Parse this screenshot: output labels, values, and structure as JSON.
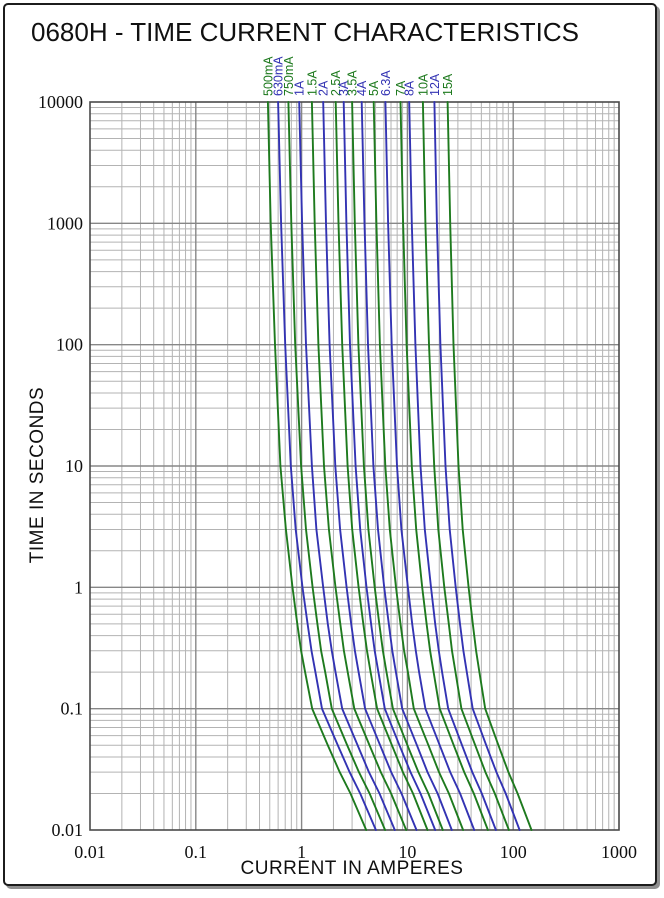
{
  "page": {
    "title": "0680H - TIME CURRENT CHARACTERISTICS"
  },
  "colors": {
    "green": "#1e7a1e",
    "blue": "#3333b3",
    "grid_minor": "#b3b3b3",
    "grid_major": "#878787",
    "frame": "#4a4a4a",
    "text": "#101010"
  },
  "chart_data": {
    "type": "line",
    "title": "0680H - TIME CURRENT CHARACTERISTICS",
    "xlabel": "CURRENT IN AMPERES",
    "ylabel": "TIME IN SECONDS",
    "x_scale": "log",
    "y_scale": "log",
    "xlim": [
      0.01,
      1000
    ],
    "ylim": [
      0.01,
      10000
    ],
    "x_ticks": [
      0.01,
      0.1,
      1,
      10,
      100,
      1000
    ],
    "y_ticks": [
      10000,
      1000,
      100,
      10,
      1,
      0.1,
      0.01
    ],
    "grid": "full log grid, major and minor lines",
    "legend_position": "labels rotated above each curve top",
    "times": [
      10000,
      1000,
      100,
      10,
      3,
      1,
      0.5,
      0.3,
      0.2,
      0.1,
      0.05,
      0.03,
      0.02,
      0.01
    ],
    "series": [
      {
        "name": "500mA",
        "color": "green",
        "currents": [
          0.48,
          0.51,
          0.56,
          0.63,
          0.71,
          0.82,
          0.91,
          0.99,
          1.08,
          1.26,
          1.77,
          2.29,
          2.9,
          4.08
        ]
      },
      {
        "name": "630mA",
        "color": "blue",
        "currents": [
          0.6,
          0.64,
          0.7,
          0.79,
          0.88,
          1.02,
          1.14,
          1.24,
          1.35,
          1.56,
          2.2,
          2.84,
          3.58,
          5.04
        ]
      },
      {
        "name": "750mA",
        "color": "green",
        "currents": [
          0.75,
          0.8,
          0.87,
          0.99,
          1.1,
          1.27,
          1.41,
          1.53,
          1.67,
          1.93,
          2.7,
          3.48,
          4.39,
          6.15
        ]
      },
      {
        "name": "1A",
        "color": "blue",
        "currents": [
          0.95,
          1.01,
          1.1,
          1.25,
          1.38,
          1.6,
          1.77,
          1.93,
          2.09,
          2.42,
          3.38,
          4.33,
          5.45,
          7.6
        ]
      },
      {
        "name": "1.5A",
        "color": "green",
        "currents": [
          1.25,
          1.33,
          1.44,
          1.63,
          1.81,
          2.09,
          2.32,
          2.51,
          2.73,
          3.15,
          4.38,
          5.6,
          7.02,
          9.75
        ]
      },
      {
        "name": "2A",
        "color": "blue",
        "currents": [
          1.6,
          1.7,
          1.84,
          2.08,
          2.31,
          2.66,
          2.94,
          3.19,
          3.46,
          3.98,
          5.52,
          7.03,
          8.8,
          12.2
        ]
      },
      {
        "name": "2.5A",
        "color": "green",
        "currents": [
          2.1,
          2.23,
          2.42,
          2.72,
          3.01,
          3.46,
          3.83,
          4.15,
          4.49,
          5.17,
          7.13,
          9.06,
          11.3,
          15.5
        ]
      },
      {
        "name": "3A",
        "color": "blue",
        "currents": [
          2.5,
          2.65,
          2.87,
          3.24,
          3.58,
          4.11,
          4.54,
          4.91,
          5.32,
          6.11,
          8.41,
          10.7,
          13.3,
          18.3
        ]
      },
      {
        "name": "3.5A",
        "color": "green",
        "currents": [
          3.0,
          3.18,
          3.44,
          3.88,
          4.28,
          4.91,
          5.43,
          5.87,
          6.35,
          7.29,
          10.0,
          12.7,
          15.8,
          21.6
        ]
      },
      {
        "name": "4A",
        "color": "blue",
        "currents": [
          3.7,
          3.93,
          4.24,
          4.77,
          5.27,
          6.04,
          6.67,
          7.2,
          7.79,
          8.93,
          12.3,
          15.5,
          19.3,
          26.3
        ]
      },
      {
        "name": "5A",
        "color": "green",
        "currents": [
          4.8,
          5.09,
          5.5,
          6.18,
          6.82,
          7.81,
          8.61,
          9.3,
          10.1,
          11.5,
          15.8,
          19.9,
          24.7,
          33.6
        ]
      },
      {
        "name": "6.3A",
        "color": "blue",
        "currents": [
          6.2,
          6.57,
          7.1,
          7.97,
          8.78,
          10.1,
          11.1,
          12.0,
          12.9,
          14.8,
          20.2,
          25.4,
          31.5,
          42.8
        ]
      },
      {
        "name": "7A",
        "color": "green",
        "currents": [
          8.6,
          9.11,
          9.82,
          11.0,
          12.1,
          13.8,
          15.2,
          16.4,
          17.7,
          20.2,
          27.4,
          34.4,
          42.4,
          57.6
        ]
      },
      {
        "name": "8A",
        "color": "blue",
        "currents": [
          10.4,
          11.0,
          11.9,
          13.3,
          14.6,
          16.7,
          18.3,
          19.8,
          21.3,
          24.3,
          32.8,
          41.1,
          50.5,
          68.6
        ]
      },
      {
        "name": "10A",
        "color": "green",
        "currents": [
          14.0,
          14.8,
          16.0,
          17.9,
          19.6,
          22.3,
          24.6,
          26.4,
          28.5,
          32.4,
          43.7,
          54.6,
          67.0,
          91.0
        ]
      },
      {
        "name": "12A",
        "color": "blue",
        "currents": [
          18.0,
          19.0,
          20.5,
          22.9,
          25.1,
          28.6,
          31.4,
          33.8,
          36.4,
          41.4,
          55.6,
          69.4,
          84.9,
          115
        ]
      },
      {
        "name": "15A",
        "color": "green",
        "currents": [
          24.0,
          25.4,
          27.3,
          30.4,
          33.3,
          37.9,
          41.5,
          44.6,
          47.9,
          54.4,
          72.5,
          90.1,
          110,
          149
        ]
      }
    ]
  }
}
